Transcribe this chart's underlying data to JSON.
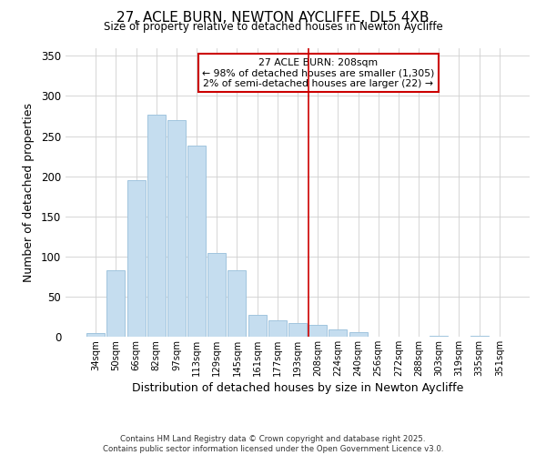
{
  "title": "27, ACLE BURN, NEWTON AYCLIFFE, DL5 4XB",
  "subtitle": "Size of property relative to detached houses in Newton Aycliffe",
  "xlabel": "Distribution of detached houses by size in Newton Aycliffe",
  "ylabel": "Number of detached properties",
  "bar_color": "#c5ddef",
  "bar_edgecolor": "#a0c4de",
  "background_color": "#ffffff",
  "grid_color": "#d0d0d0",
  "categories": [
    "34sqm",
    "50sqm",
    "66sqm",
    "82sqm",
    "97sqm",
    "113sqm",
    "129sqm",
    "145sqm",
    "161sqm",
    "177sqm",
    "193sqm",
    "208sqm",
    "224sqm",
    "240sqm",
    "256sqm",
    "272sqm",
    "288sqm",
    "303sqm",
    "319sqm",
    "335sqm",
    "351sqm"
  ],
  "values": [
    5,
    83,
    195,
    277,
    270,
    238,
    104,
    83,
    27,
    20,
    17,
    15,
    9,
    6,
    0,
    0,
    0,
    1,
    0,
    1,
    0
  ],
  "vline_index": 11,
  "vline_color": "#cc0000",
  "annotation_title": "27 ACLE BURN: 208sqm",
  "annotation_line1": "← 98% of detached houses are smaller (1,305)",
  "annotation_line2": "2% of semi-detached houses are larger (22) →",
  "annotation_box_edgecolor": "#cc0000",
  "ylim": [
    0,
    360
  ],
  "yticks": [
    0,
    50,
    100,
    150,
    200,
    250,
    300,
    350
  ],
  "footer1": "Contains HM Land Registry data © Crown copyright and database right 2025.",
  "footer2": "Contains public sector information licensed under the Open Government Licence v3.0."
}
